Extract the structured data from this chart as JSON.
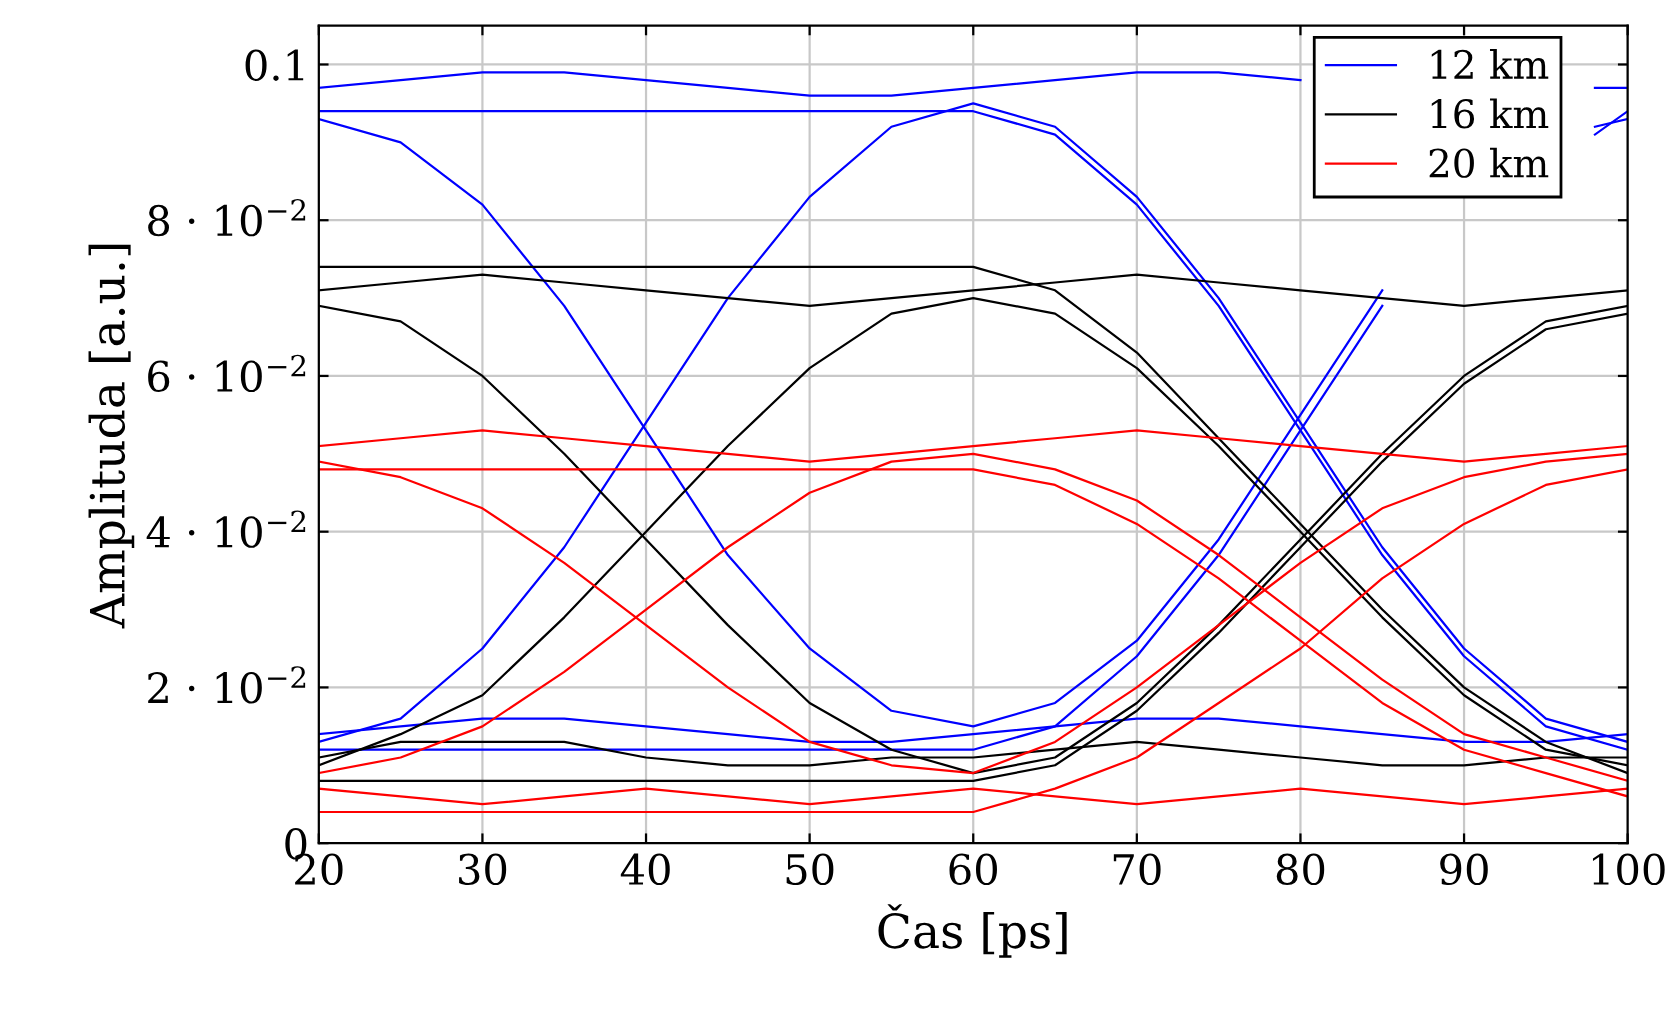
{
  "chart_data": {
    "type": "line",
    "xlabel": "Čas [ps]",
    "ylabel": "Amplituda [a.u.]",
    "x": [
      20,
      25,
      30,
      35,
      40,
      45,
      50,
      55,
      60,
      65,
      70,
      75,
      80,
      85,
      90,
      95,
      100
    ],
    "xlim": [
      20,
      100
    ],
    "xticks": [
      20,
      30,
      40,
      50,
      60,
      70,
      80,
      90,
      100
    ],
    "ylim": [
      0,
      0.105
    ],
    "yticks": [
      0,
      {
        "value": 0.02,
        "label": "2 · 10$^{−2}$"
      },
      {
        "value": 0.04,
        "label": "4 · 10$^{−2}$"
      },
      {
        "value": 0.06,
        "label": "6 · 10$^{−2}$"
      },
      {
        "value": 0.08,
        "label": "8 · 10$^{−2}$"
      },
      0.1
    ],
    "grid": true,
    "legend": "top right",
    "line_style": "solid",
    "marker": "none",
    "series": [
      {
        "name": "12 km",
        "color": "#0000ff",
        "x": [
          20,
          25,
          30,
          35,
          40,
          45,
          50,
          55,
          60,
          65,
          70,
          75,
          80,
          85,
          90,
          95,
          98,
          100
        ],
        "values": [
          0.097,
          0.098,
          0.099,
          0.099,
          0.098,
          0.097,
          0.096,
          0.096,
          0.097,
          0.098,
          0.099,
          0.099,
          0.098,
          null,
          null,
          null,
          0.097,
          0.097
        ]
      },
      {
        "color": "#0000ff",
        "values": [
          0.014,
          0.015,
          0.016,
          0.016,
          0.015,
          0.014,
          0.013,
          0.013,
          0.014,
          0.015,
          0.016,
          0.016,
          0.015,
          0.014,
          0.013,
          0.013,
          0.014
        ]
      },
      {
        "color": "#0000ff",
        "values": [
          0.013,
          0.016,
          0.025,
          0.038,
          0.054,
          0.07,
          0.083,
          0.092,
          0.095,
          0.092,
          0.083,
          0.07,
          0.054,
          0.038,
          0.025,
          0.016,
          0.013
        ]
      },
      {
        "color": "#0000ff",
        "x": [
          20,
          25,
          30,
          35,
          40,
          45,
          50,
          55,
          60,
          65,
          70,
          75,
          80,
          85,
          90,
          95,
          98,
          100
        ],
        "values": [
          0.093,
          0.09,
          0.082,
          0.069,
          0.053,
          0.037,
          0.025,
          0.017,
          0.015,
          0.018,
          0.026,
          0.039,
          0.055,
          0.071,
          null,
          null,
          0.092,
          0.093
        ]
      },
      {
        "color": "#0000ff",
        "values": [
          0.094,
          0.094,
          0.094,
          0.094,
          0.094,
          0.094,
          0.094,
          0.094,
          0.094,
          0.091,
          0.082,
          0.069,
          0.053,
          0.037,
          0.024,
          0.015,
          0.012
        ]
      },
      {
        "color": "#0000ff",
        "x": [
          20,
          25,
          30,
          35,
          40,
          45,
          50,
          55,
          60,
          65,
          70,
          75,
          80,
          85,
          90,
          95,
          98,
          100
        ],
        "values": [
          0.012,
          0.012,
          0.012,
          0.012,
          0.012,
          0.012,
          0.012,
          0.012,
          0.012,
          0.015,
          0.024,
          0.037,
          0.053,
          0.069,
          null,
          null,
          0.091,
          0.094
        ]
      },
      {
        "name": "16 km",
        "color": "#000000",
        "values": [
          0.071,
          0.072,
          0.073,
          0.072,
          0.071,
          0.07,
          0.069,
          0.07,
          0.071,
          0.072,
          0.073,
          0.072,
          0.071,
          0.07,
          0.069,
          0.07,
          0.071
        ]
      },
      {
        "color": "#000000",
        "values": [
          0.011,
          0.013,
          0.013,
          0.013,
          0.011,
          0.01,
          0.01,
          0.011,
          0.011,
          0.012,
          0.013,
          0.012,
          0.011,
          0.01,
          0.01,
          0.011,
          0.011
        ]
      },
      {
        "color": "#000000",
        "values": [
          0.01,
          0.014,
          0.019,
          0.029,
          0.04,
          0.051,
          0.061,
          0.068,
          0.07,
          0.068,
          0.061,
          0.051,
          0.04,
          0.029,
          0.019,
          0.012,
          0.01
        ]
      },
      {
        "color": "#000000",
        "values": [
          0.069,
          0.067,
          0.06,
          0.05,
          0.039,
          0.028,
          0.018,
          0.012,
          0.009,
          0.011,
          0.018,
          0.028,
          0.039,
          0.05,
          0.06,
          0.067,
          0.069
        ]
      },
      {
        "color": "#000000",
        "values": [
          0.074,
          0.074,
          0.074,
          0.074,
          0.074,
          0.074,
          0.074,
          0.074,
          0.074,
          0.071,
          0.063,
          0.052,
          0.041,
          0.03,
          0.02,
          0.013,
          0.009
        ]
      },
      {
        "color": "#000000",
        "values": [
          0.008,
          0.008,
          0.008,
          0.008,
          0.008,
          0.008,
          0.008,
          0.008,
          0.008,
          0.01,
          0.017,
          0.027,
          0.038,
          0.049,
          0.059,
          0.066,
          0.068
        ]
      },
      {
        "name": "20 km",
        "color": "#ff0000",
        "values": [
          0.051,
          0.052,
          0.053,
          0.052,
          0.051,
          0.05,
          0.049,
          0.05,
          0.051,
          0.052,
          0.053,
          0.052,
          0.051,
          0.05,
          0.049,
          0.05,
          0.051
        ]
      },
      {
        "color": "#ff0000",
        "values": [
          0.007,
          0.006,
          0.005,
          0.006,
          0.007,
          0.006,
          0.005,
          0.006,
          0.007,
          0.006,
          0.005,
          0.006,
          0.007,
          0.006,
          0.005,
          0.006,
          0.007
        ]
      },
      {
        "color": "#ff0000",
        "values": [
          0.009,
          0.011,
          0.015,
          0.022,
          0.03,
          0.038,
          0.045,
          0.049,
          0.05,
          0.048,
          0.044,
          0.037,
          0.029,
          0.021,
          0.014,
          0.011,
          0.008
        ]
      },
      {
        "color": "#ff0000",
        "values": [
          0.049,
          0.047,
          0.043,
          0.036,
          0.028,
          0.02,
          0.013,
          0.01,
          0.009,
          0.013,
          0.02,
          0.028,
          0.036,
          0.043,
          0.047,
          0.049,
          0.05
        ]
      },
      {
        "color": "#ff0000",
        "values": [
          0.048,
          0.048,
          0.048,
          0.048,
          0.048,
          0.048,
          0.048,
          0.048,
          0.048,
          0.046,
          0.041,
          0.034,
          0.026,
          0.018,
          0.012,
          0.009,
          0.006
        ]
      },
      {
        "color": "#ff0000",
        "values": [
          0.004,
          0.004,
          0.004,
          0.004,
          0.004,
          0.004,
          0.004,
          0.004,
          0.004,
          0.007,
          0.011,
          0.018,
          0.025,
          0.034,
          0.041,
          0.046,
          0.048
        ]
      }
    ]
  }
}
